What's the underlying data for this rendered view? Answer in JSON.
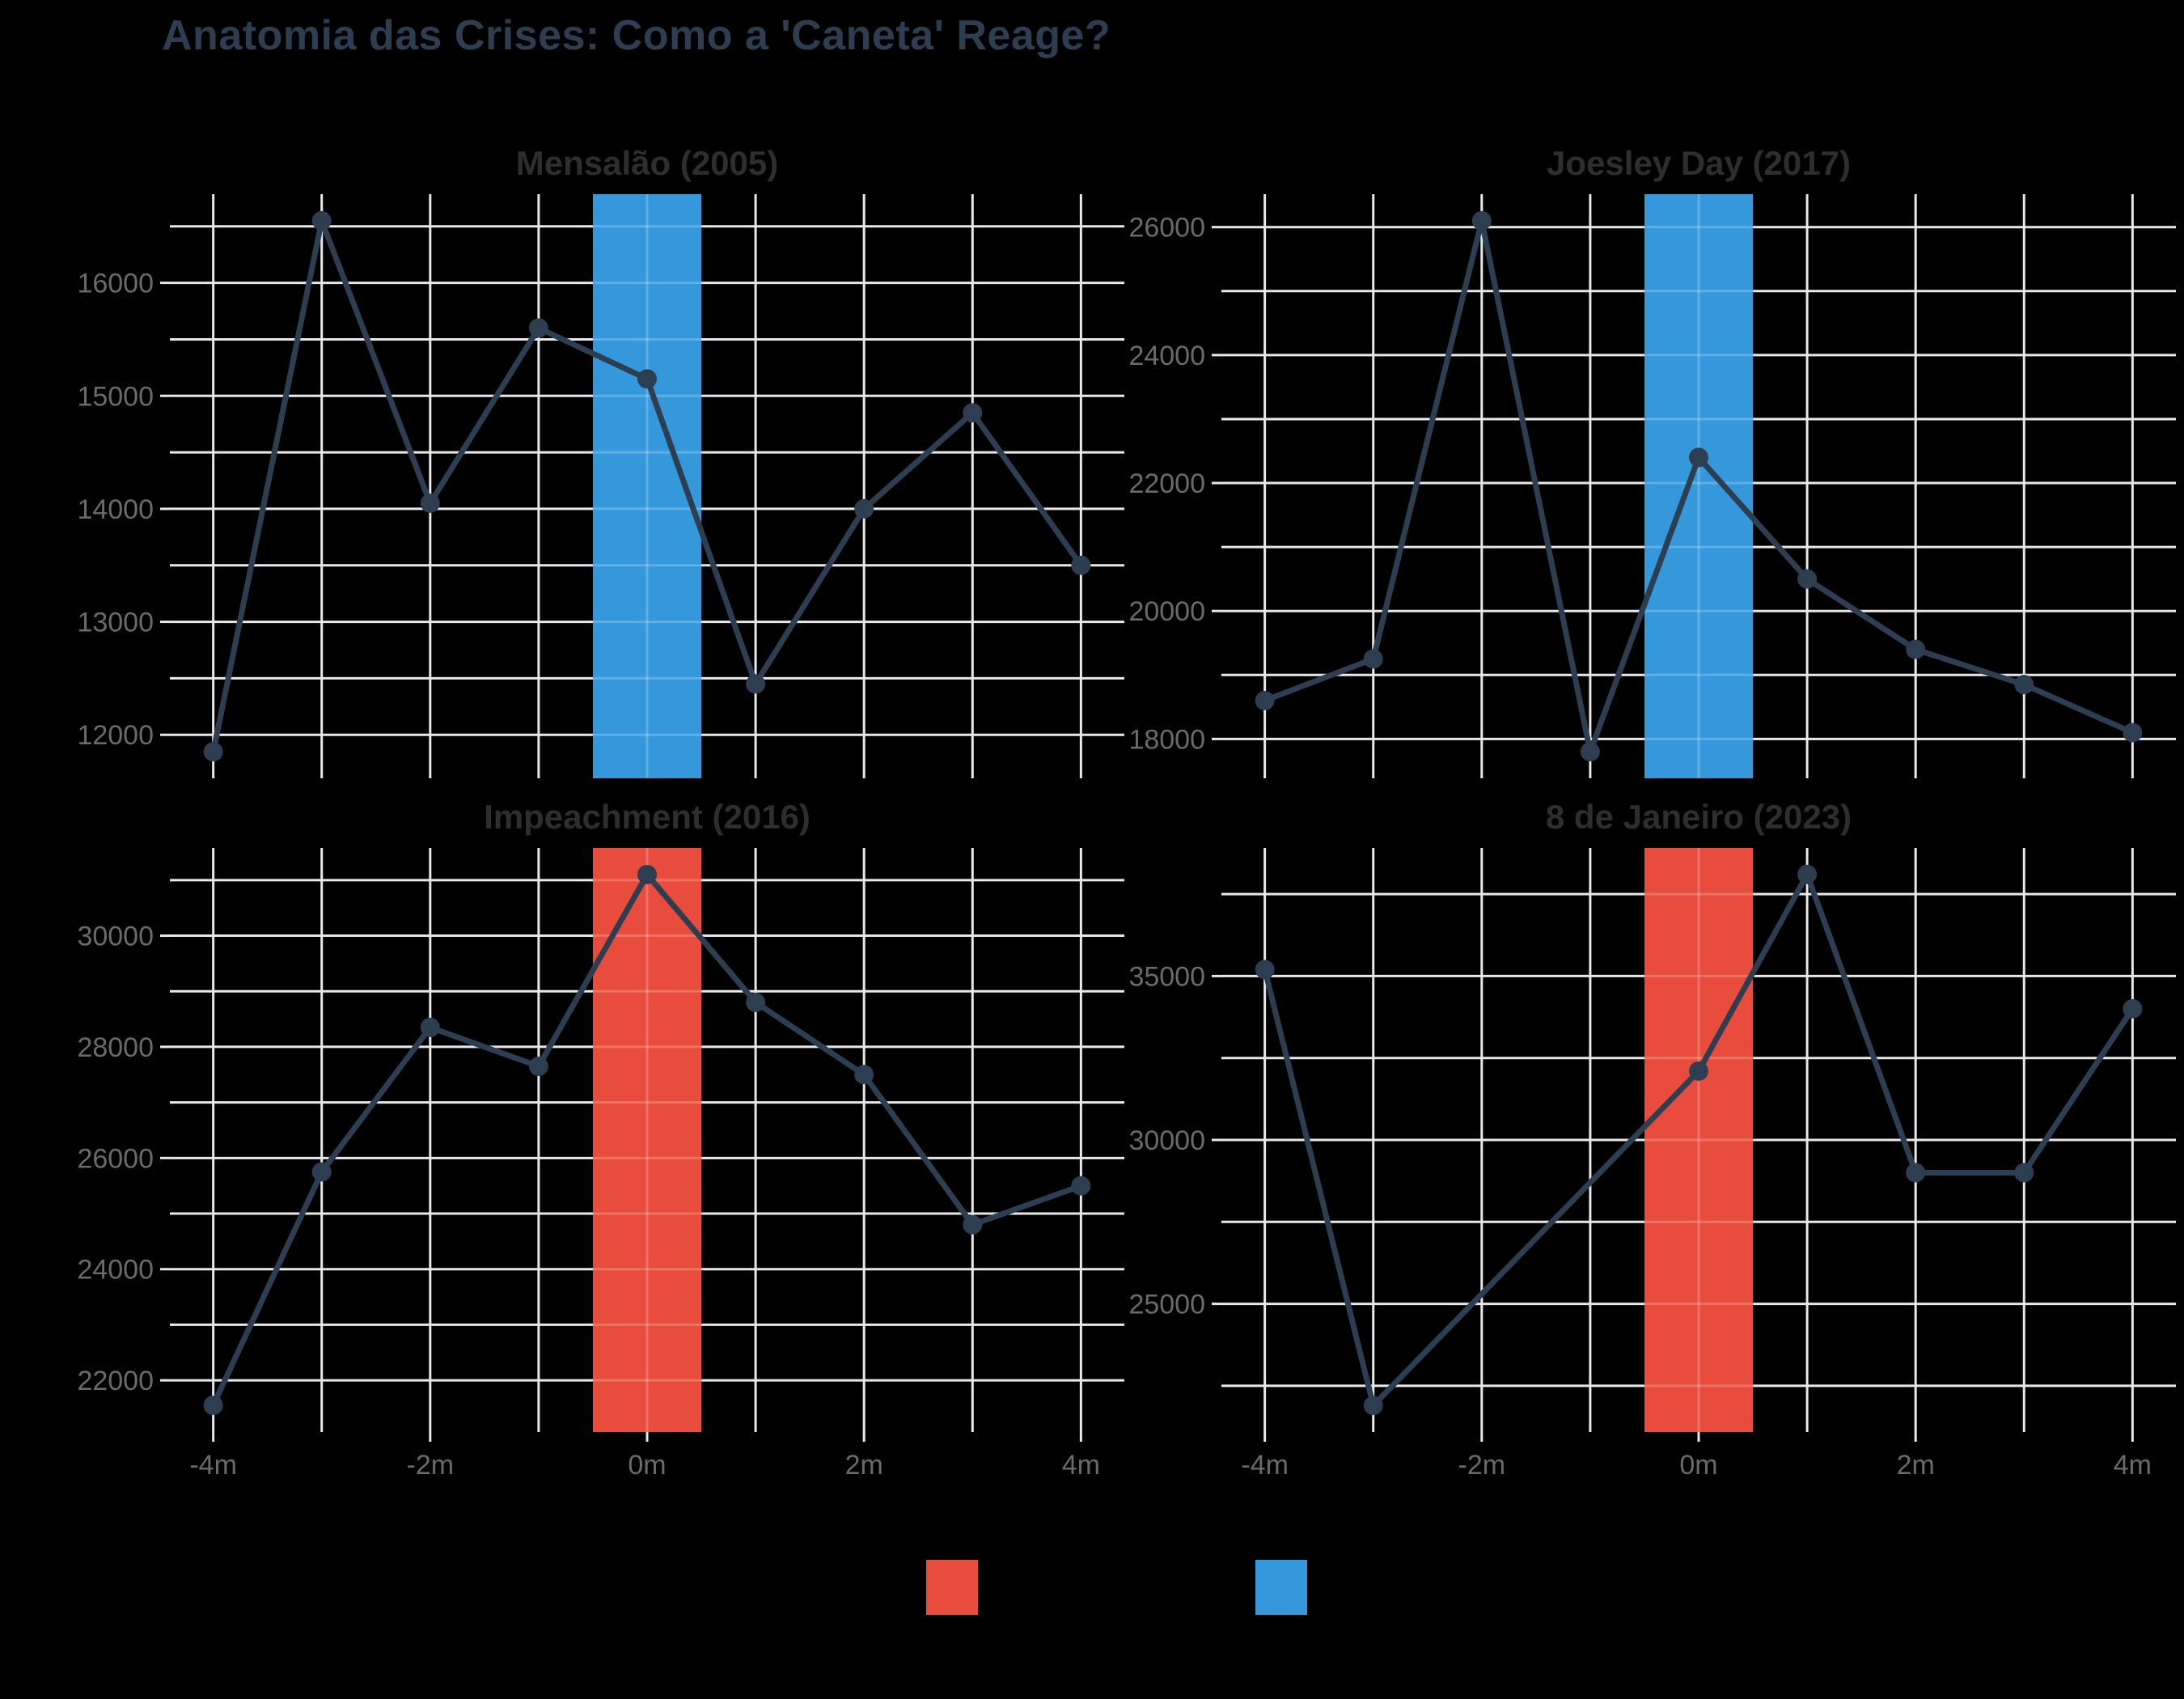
{
  "page_title": "Anatomia das Crises: Como a 'Caneta' Reage?",
  "colors": {
    "background": "#000000",
    "title": "#2c3e50",
    "facet_title": "#2e2e2e",
    "tick_label": "#6a6a6a",
    "grid": "#e8e8ea",
    "line": "#2c3e50",
    "band_red": "#e74c3c",
    "band_blue": "#3498db"
  },
  "x_axis": {
    "domain": [
      -4.4,
      4.4
    ],
    "tick_values": [
      -4,
      -2,
      0,
      2,
      4
    ],
    "tick_labels": [
      "-4m",
      "-2m",
      "0m",
      "2m",
      "4m"
    ]
  },
  "legend": {
    "items": [
      {
        "name": "legend-swatch-red",
        "color": "#e74c3c",
        "label": ""
      },
      {
        "name": "legend-swatch-blue",
        "color": "#3498db",
        "label": ""
      }
    ]
  },
  "chart_data": [
    {
      "type": "line",
      "title": "Mensalão (2005)",
      "band": {
        "x0": -0.5,
        "x1": 0.5,
        "color": "#3498db"
      },
      "x": [
        -4,
        -3,
        -2,
        -1,
        0,
        1,
        2,
        3,
        4
      ],
      "values": [
        11850,
        16550,
        14050,
        15600,
        15150,
        12450,
        14000,
        14850,
        13500
      ],
      "ylim": [
        11615,
        16785
      ],
      "yticks": [
        12000,
        13000,
        14000,
        15000,
        16000
      ],
      "ygrid_step": 500
    },
    {
      "type": "line",
      "title": "Joesley Day (2017)",
      "band": {
        "x0": -0.5,
        "x1": 0.5,
        "color": "#3498db"
      },
      "x": [
        -4,
        -3,
        -2,
        -1,
        0,
        1,
        2,
        3,
        4
      ],
      "values": [
        18600,
        19250,
        26100,
        17800,
        22400,
        20500,
        19400,
        18850,
        18100
      ],
      "ylim": [
        17385,
        26515
      ],
      "yticks": [
        18000,
        20000,
        22000,
        24000,
        26000
      ],
      "ygrid_step": 1000
    },
    {
      "type": "line",
      "title": "Impeachment (2016)",
      "band": {
        "x0": -0.5,
        "x1": 0.5,
        "color": "#e74c3c"
      },
      "x": [
        -4,
        -3,
        -2,
        -1,
        0,
        1,
        2,
        3,
        4
      ],
      "values": [
        21550,
        25750,
        28350,
        27650,
        31100,
        28800,
        27500,
        24800,
        25500
      ],
      "ylim": [
        21070,
        31580
      ],
      "yticks": [
        22000,
        24000,
        26000,
        28000,
        30000
      ],
      "ygrid_step": 1000
    },
    {
      "type": "line",
      "title": "8 de Janeiro (2023)",
      "band": {
        "x0": -0.5,
        "x1": 0.5,
        "color": "#e74c3c"
      },
      "x": [
        -4,
        -3,
        0,
        1,
        2,
        3,
        4
      ],
      "values": [
        35200,
        21900,
        32100,
        38100,
        29000,
        29000,
        34000
      ],
      "ylim": [
        21090,
        38910
      ],
      "yticks": [
        25000,
        30000,
        35000
      ],
      "ygrid_step": 2500
    }
  ]
}
